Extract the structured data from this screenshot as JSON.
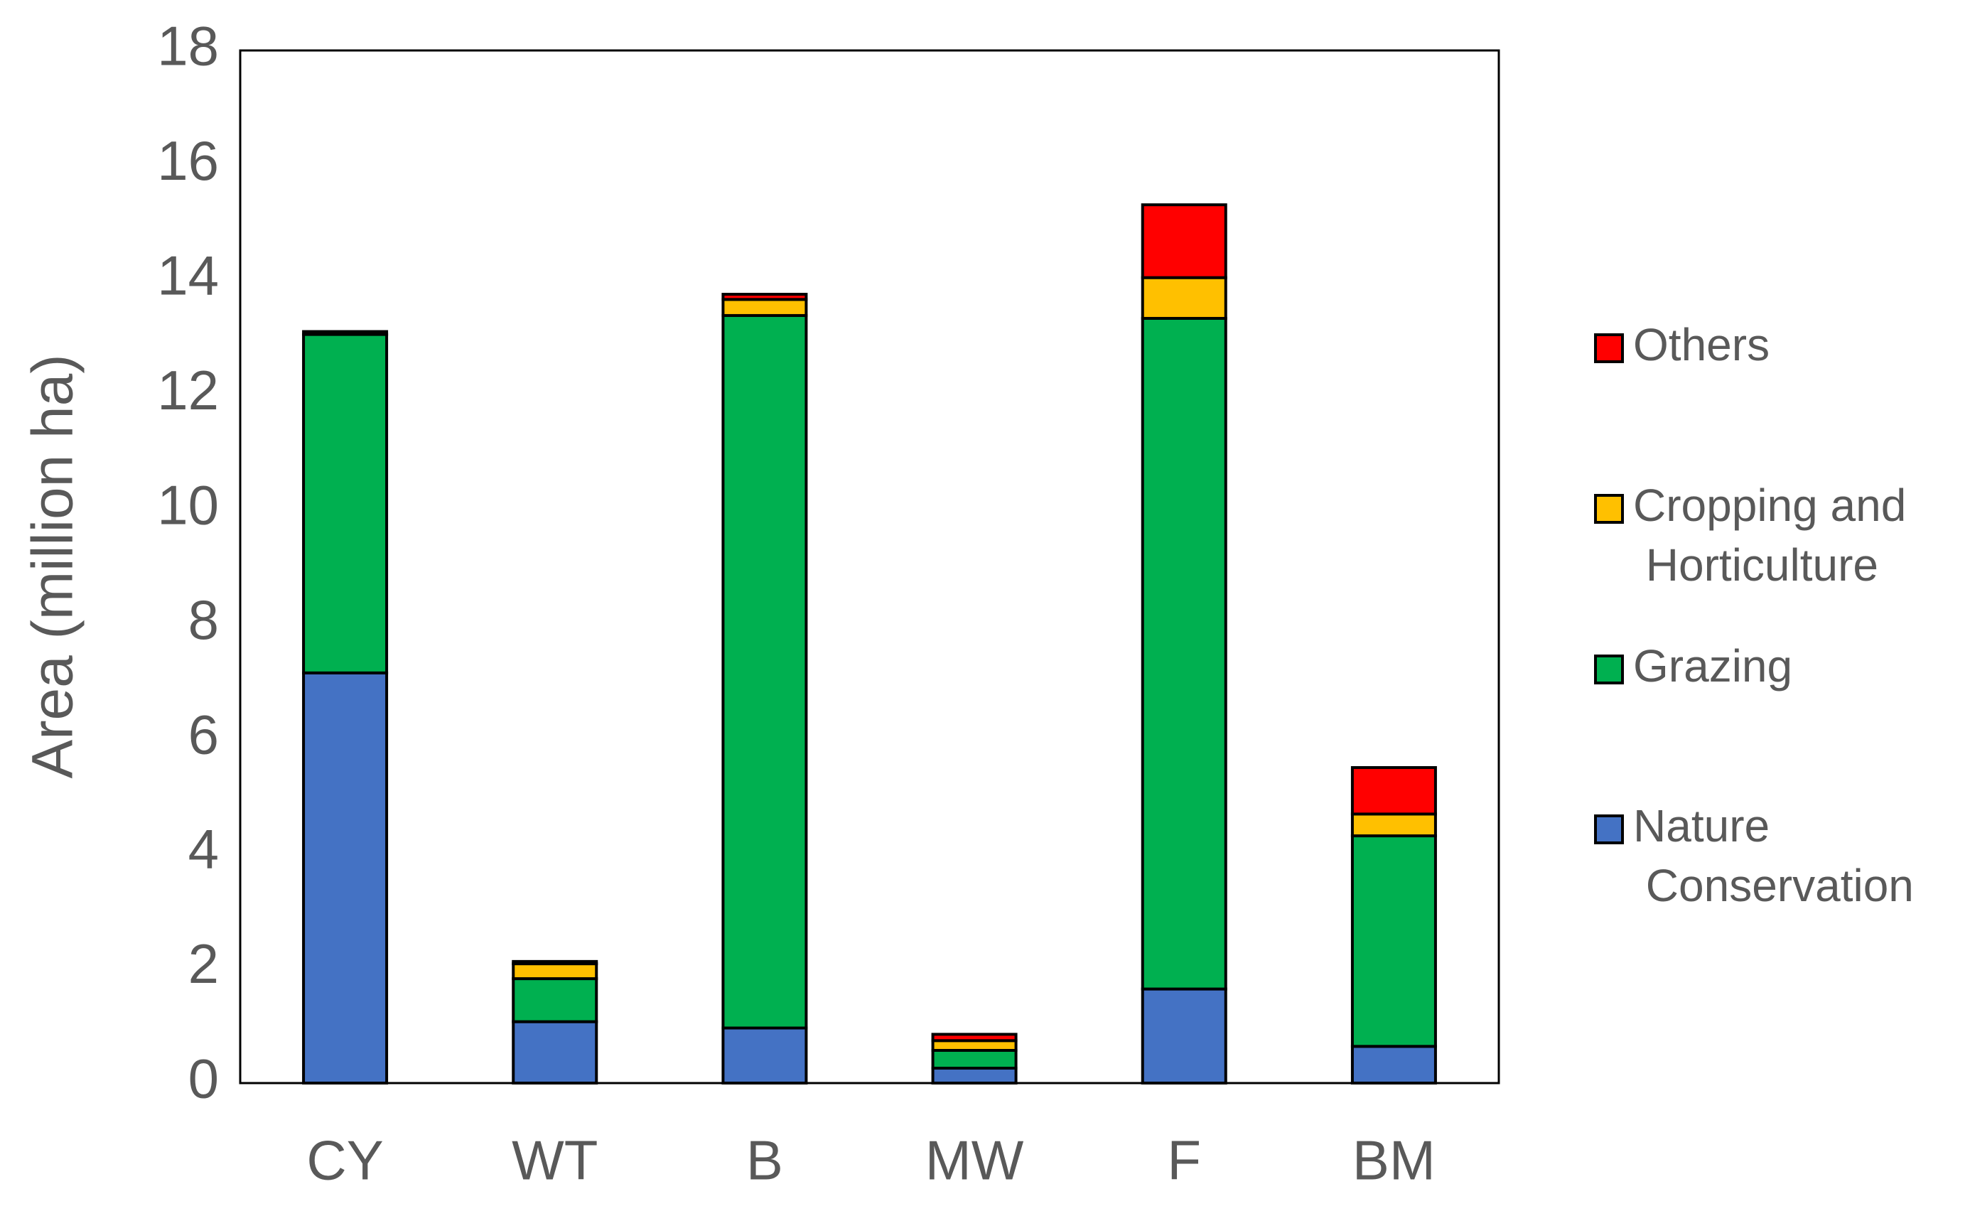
{
  "chart_data": {
    "type": "stacked_bar",
    "y_label": "Area (million ha)",
    "categories": [
      "CY",
      "WT",
      "B",
      "MW",
      "F",
      "BM"
    ],
    "series": [
      {
        "name": "Nature Conservation",
        "color": "#4472c4",
        "values": [
          7.15,
          1.07,
          0.96,
          0.26,
          1.64,
          0.64
        ]
      },
      {
        "name": "Grazing",
        "color": "#00b050",
        "values": [
          5.9,
          0.75,
          12.42,
          0.31,
          11.69,
          3.67
        ]
      },
      {
        "name": "Cropping and Horticulture",
        "color": "#ffc000",
        "values": [
          0,
          0.26,
          0.28,
          0.17,
          0.71,
          0.38
        ]
      },
      {
        "name": "Others",
        "color": "#ff0000",
        "values": [
          0.05,
          0.04,
          0.09,
          0.11,
          1.27,
          0.81
        ]
      }
    ],
    "ylim": [
      0,
      18
    ],
    "yticks": [
      0,
      2,
      4,
      6,
      8,
      10,
      12,
      14,
      16,
      18
    ],
    "grid": false,
    "legend": "right"
  }
}
